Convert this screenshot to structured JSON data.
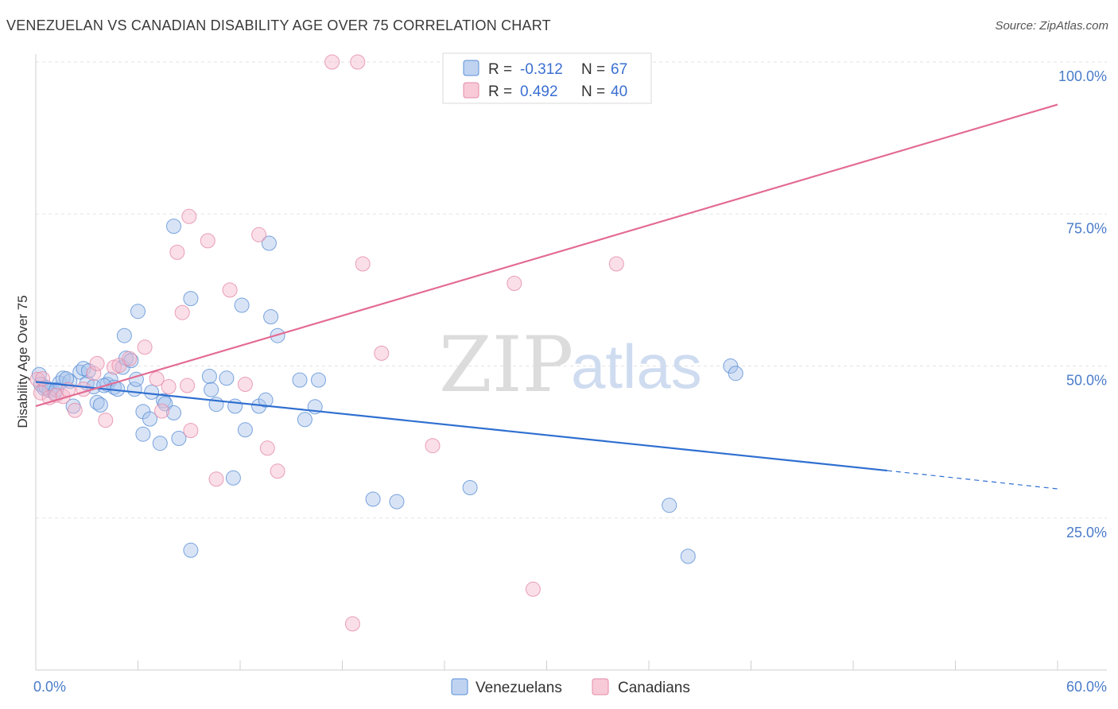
{
  "header": {
    "title": "VENEZUELAN VS CANADIAN DISABILITY AGE OVER 75 CORRELATION CHART",
    "source": "Source: ZipAtlas.com"
  },
  "watermark": {
    "zip": "ZIP",
    "atlas": "atlas"
  },
  "legend": {
    "rows": [
      {
        "r_label": "R =",
        "r_value": "-0.312",
        "n_label": "N =",
        "n_value": "67",
        "color": "#a9c4ec"
      },
      {
        "r_label": "R =",
        "r_value": "0.492",
        "n_label": "N =",
        "n_value": "40",
        "color": "#f5b8cb"
      }
    ]
  },
  "bottom_legend": [
    "Venezuelans",
    "Canadians"
  ],
  "chart_data": {
    "type": "scatter",
    "title": "VENEZUELAN VS CANADIAN DISABILITY AGE OVER 75 CORRELATION CHART",
    "xlabel": "",
    "ylabel": "Disability Age Over 75",
    "xlim": [
      0,
      60
    ],
    "ylim": [
      0,
      100
    ],
    "x_tick_labels": [
      "0.0%",
      "60.0%"
    ],
    "y_tick_labels": [
      "25.0%",
      "50.0%",
      "75.0%",
      "100.0%"
    ],
    "y_ticks": [
      25,
      50,
      75,
      100
    ],
    "grid": true,
    "legend_position": "top-center",
    "series": [
      {
        "name": "Venezuelans",
        "color": "#a9c4ec",
        "stroke": "#5b8fd6",
        "line_color": "#2f6fd0",
        "R": -0.312,
        "N": 67,
        "trend": {
          "x0": 0,
          "y0": 47.4,
          "x1": 50,
          "y1": 32.8,
          "dash_to_x": 60,
          "dash_to_y": 29.8
        },
        "points": [
          [
            0.2,
            48.6
          ],
          [
            0.3,
            47.0
          ],
          [
            0.5,
            46.3
          ],
          [
            0.8,
            46.0
          ],
          [
            1.1,
            45.6
          ],
          [
            1.4,
            47.2
          ],
          [
            1.6,
            48.0
          ],
          [
            2.0,
            47.5
          ],
          [
            2.2,
            43.4
          ],
          [
            2.6,
            49.0
          ],
          [
            2.8,
            49.6
          ],
          [
            3.0,
            47.2
          ],
          [
            3.4,
            46.6
          ],
          [
            3.6,
            44.0
          ],
          [
            3.8,
            43.6
          ],
          [
            4.2,
            47.0
          ],
          [
            4.4,
            47.8
          ],
          [
            4.6,
            46.5
          ],
          [
            4.8,
            46.2
          ],
          [
            5.1,
            49.8
          ],
          [
            5.2,
            55.0
          ],
          [
            5.3,
            51.3
          ],
          [
            5.6,
            50.9
          ],
          [
            5.8,
            46.2
          ],
          [
            5.9,
            47.8
          ],
          [
            6.0,
            59.0
          ],
          [
            6.3,
            42.5
          ],
          [
            6.3,
            38.8
          ],
          [
            6.7,
            41.3
          ],
          [
            6.8,
            45.7
          ],
          [
            7.3,
            37.3
          ],
          [
            7.5,
            44.3
          ],
          [
            7.6,
            43.8
          ],
          [
            8.1,
            42.3
          ],
          [
            8.1,
            73.0
          ],
          [
            8.4,
            38.1
          ],
          [
            9.1,
            61.1
          ],
          [
            9.1,
            19.7
          ],
          [
            10.2,
            48.3
          ],
          [
            10.3,
            46.1
          ],
          [
            10.6,
            43.7
          ],
          [
            11.2,
            48.0
          ],
          [
            11.6,
            31.6
          ],
          [
            11.7,
            43.4
          ],
          [
            12.3,
            39.5
          ],
          [
            12.1,
            60.0
          ],
          [
            13.1,
            43.4
          ],
          [
            13.5,
            44.4
          ],
          [
            13.7,
            70.2
          ],
          [
            13.8,
            58.1
          ],
          [
            14.2,
            55.0
          ],
          [
            15.5,
            47.7
          ],
          [
            15.8,
            41.2
          ],
          [
            16.4,
            43.3
          ],
          [
            16.6,
            47.7
          ],
          [
            19.8,
            28.1
          ],
          [
            21.2,
            27.7
          ],
          [
            25.5,
            30.0
          ],
          [
            37.2,
            27.1
          ],
          [
            38.3,
            18.7
          ],
          [
            40.8,
            50.0
          ],
          [
            41.1,
            48.8
          ],
          [
            0.6,
            46.5
          ],
          [
            1.2,
            46.1
          ],
          [
            1.8,
            47.9
          ],
          [
            3.1,
            49.2
          ],
          [
            4.0,
            46.8
          ]
        ]
      },
      {
        "name": "Canadians",
        "color": "#f5b8cb",
        "stroke": "#e58aa7",
        "line_color": "#e36b93",
        "R": 0.492,
        "N": 40,
        "trend": {
          "x0": 0,
          "y0": 43.4,
          "x1": 60,
          "y1": 93.0
        },
        "points": [
          [
            0.1,
            47.8
          ],
          [
            0.3,
            45.6
          ],
          [
            0.4,
            47.9
          ],
          [
            0.8,
            44.8
          ],
          [
            1.2,
            45.2
          ],
          [
            1.6,
            45.0
          ],
          [
            1.9,
            46.1
          ],
          [
            2.3,
            42.7
          ],
          [
            2.8,
            46.2
          ],
          [
            3.4,
            48.8
          ],
          [
            3.6,
            50.4
          ],
          [
            4.1,
            41.1
          ],
          [
            4.6,
            49.8
          ],
          [
            4.9,
            50.1
          ],
          [
            5.5,
            51.2
          ],
          [
            6.4,
            53.1
          ],
          [
            7.1,
            47.9
          ],
          [
            7.4,
            42.6
          ],
          [
            7.8,
            46.6
          ],
          [
            8.3,
            68.7
          ],
          [
            8.6,
            58.8
          ],
          [
            8.9,
            46.8
          ],
          [
            9.0,
            74.6
          ],
          [
            9.1,
            39.4
          ],
          [
            10.1,
            70.6
          ],
          [
            10.6,
            31.4
          ],
          [
            11.4,
            62.5
          ],
          [
            12.3,
            47.0
          ],
          [
            13.1,
            71.6
          ],
          [
            13.6,
            36.5
          ],
          [
            14.2,
            32.7
          ],
          [
            17.4,
            100.0
          ],
          [
            18.6,
            7.6
          ],
          [
            18.9,
            100.0
          ],
          [
            19.2,
            66.8
          ],
          [
            20.3,
            52.1
          ],
          [
            23.3,
            36.9
          ],
          [
            28.1,
            63.6
          ],
          [
            29.2,
            13.3
          ],
          [
            34.1,
            66.8
          ]
        ]
      }
    ]
  }
}
